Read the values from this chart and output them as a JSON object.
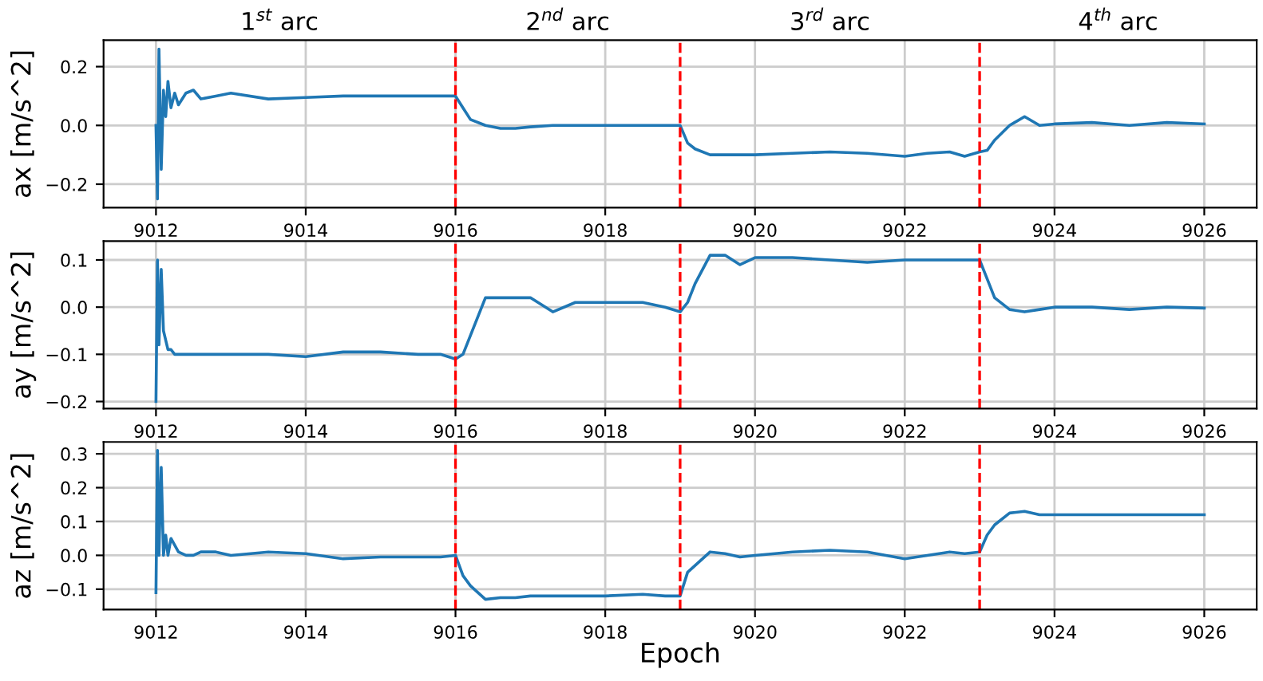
{
  "chart_data": [
    {
      "type": "line",
      "ylabel": "ax [m/s^2]",
      "grid": true,
      "xlim": [
        9011.3,
        9026.7
      ],
      "ylim": [
        -0.28,
        0.29
      ],
      "xticks": [
        9012,
        9014,
        9016,
        9018,
        9020,
        9022,
        9024,
        9026
      ],
      "yticks": [
        {
          "value": -0.2,
          "label": "−0.2"
        },
        {
          "value": 0,
          "label": "0.0"
        },
        {
          "value": 0.2,
          "label": "0.2"
        }
      ],
      "annotations": [
        "1$^{st}$ arc",
        "2$^{nd}$ arc",
        "3$^{rd}$ arc",
        "4$^{th}$ arc"
      ],
      "ref_lines": [
        {
          "axis": "x",
          "value": 9016,
          "color": "#ff0000",
          "line_style": "dashed"
        },
        {
          "axis": "x",
          "value": 9019,
          "color": "#ff0000",
          "line_style": "dashed"
        },
        {
          "axis": "x",
          "value": 9023,
          "color": "#ff0000",
          "line_style": "dashed"
        }
      ],
      "x": [
        9012.0,
        9012.02,
        9012.04,
        9012.07,
        9012.1,
        9012.13,
        9012.16,
        9012.2,
        9012.25,
        9012.3,
        9012.4,
        9012.5,
        9012.6,
        9012.8,
        9013.0,
        9013.5,
        9014.0,
        9014.5,
        9015.0,
        9015.5,
        9015.8,
        9016.0,
        9016.1,
        9016.2,
        9016.4,
        9016.6,
        9016.8,
        9017.0,
        9017.3,
        9017.6,
        9018.0,
        9018.5,
        9018.8,
        9019.0,
        9019.1,
        9019.2,
        9019.4,
        9019.6,
        9019.8,
        9020.0,
        9020.5,
        9021.0,
        9021.5,
        9022.0,
        9022.3,
        9022.6,
        9022.8,
        9023.0,
        9023.1,
        9023.2,
        9023.4,
        9023.6,
        9023.8,
        9024.0,
        9024.5,
        9025.0,
        9025.5,
        9026.0
      ],
      "series": [
        {
          "color": "#1f77b4",
          "values": [
            0.0,
            -0.25,
            0.26,
            -0.15,
            0.12,
            0.03,
            0.15,
            0.06,
            0.11,
            0.07,
            0.11,
            0.12,
            0.09,
            0.1,
            0.11,
            0.09,
            0.095,
            0.1,
            0.1,
            0.1,
            0.1,
            0.1,
            0.06,
            0.02,
            0.0,
            -0.01,
            -0.01,
            -0.005,
            0.0,
            0.0,
            0.0,
            0.0,
            0.0,
            0.0,
            -0.06,
            -0.08,
            -0.1,
            -0.1,
            -0.1,
            -0.1,
            -0.095,
            -0.09,
            -0.095,
            -0.105,
            -0.095,
            -0.09,
            -0.105,
            -0.09,
            -0.085,
            -0.05,
            0.0,
            0.03,
            0.0,
            0.005,
            0.01,
            0.0,
            0.01,
            0.005
          ]
        }
      ]
    },
    {
      "type": "line",
      "ylabel": "ay [m/s^2]",
      "grid": true,
      "xlim": [
        9011.3,
        9026.7
      ],
      "ylim": [
        -0.215,
        0.14
      ],
      "xticks": [
        9012,
        9014,
        9016,
        9018,
        9020,
        9022,
        9024,
        9026
      ],
      "yticks": [
        {
          "value": -0.2,
          "label": "−0.2"
        },
        {
          "value": -0.1,
          "label": "−0.1"
        },
        {
          "value": 0,
          "label": "0.0"
        },
        {
          "value": 0.1,
          "label": "0.1"
        }
      ],
      "ref_lines": [
        {
          "axis": "x",
          "value": 9016,
          "color": "#ff0000",
          "line_style": "dashed"
        },
        {
          "axis": "x",
          "value": 9019,
          "color": "#ff0000",
          "line_style": "dashed"
        },
        {
          "axis": "x",
          "value": 9023,
          "color": "#ff0000",
          "line_style": "dashed"
        }
      ],
      "x": [
        9012.0,
        9012.02,
        9012.04,
        9012.07,
        9012.1,
        9012.13,
        9012.16,
        9012.2,
        9012.25,
        9012.3,
        9012.4,
        9012.5,
        9012.6,
        9012.8,
        9013.0,
        9013.5,
        9014.0,
        9014.5,
        9015.0,
        9015.5,
        9015.8,
        9016.0,
        9016.1,
        9016.2,
        9016.4,
        9016.6,
        9016.8,
        9017.0,
        9017.3,
        9017.6,
        9018.0,
        9018.5,
        9018.8,
        9019.0,
        9019.1,
        9019.2,
        9019.4,
        9019.6,
        9019.8,
        9020.0,
        9020.5,
        9021.0,
        9021.5,
        9022.0,
        9022.3,
        9022.6,
        9022.8,
        9023.0,
        9023.1,
        9023.2,
        9023.4,
        9023.6,
        9023.8,
        9024.0,
        9024.5,
        9025.0,
        9025.5,
        9026.0
      ],
      "series": [
        {
          "color": "#1f77b4",
          "values": [
            -0.2,
            0.1,
            -0.08,
            0.08,
            -0.05,
            -0.07,
            -0.09,
            -0.09,
            -0.1,
            -0.1,
            -0.1,
            -0.1,
            -0.1,
            -0.1,
            -0.1,
            -0.1,
            -0.105,
            -0.095,
            -0.095,
            -0.1,
            -0.1,
            -0.11,
            -0.1,
            -0.06,
            0.02,
            0.02,
            0.02,
            0.02,
            -0.01,
            0.01,
            0.01,
            0.01,
            0.0,
            -0.01,
            0.01,
            0.05,
            0.11,
            0.11,
            0.09,
            0.105,
            0.105,
            0.1,
            0.095,
            0.1,
            0.1,
            0.1,
            0.1,
            0.1,
            0.06,
            0.02,
            -0.005,
            -0.01,
            -0.005,
            0.0,
            0.0,
            -0.005,
            0.0,
            -0.002
          ]
        }
      ]
    },
    {
      "type": "line",
      "xlabel": "Epoch",
      "ylabel": "az [m/s^2]",
      "grid": true,
      "xlim": [
        9011.3,
        9026.7
      ],
      "ylim": [
        -0.16,
        0.335
      ],
      "xticks": [
        9012,
        9014,
        9016,
        9018,
        9020,
        9022,
        9024,
        9026
      ],
      "yticks": [
        {
          "value": -0.1,
          "label": "−0.1"
        },
        {
          "value": 0,
          "label": "0.0"
        },
        {
          "value": 0.1,
          "label": "0.1"
        },
        {
          "value": 0.2,
          "label": "0.2"
        },
        {
          "value": 0.3,
          "label": "0.3"
        }
      ],
      "ref_lines": [
        {
          "axis": "x",
          "value": 9016,
          "color": "#ff0000",
          "line_style": "dashed"
        },
        {
          "axis": "x",
          "value": 9019,
          "color": "#ff0000",
          "line_style": "dashed"
        },
        {
          "axis": "x",
          "value": 9023,
          "color": "#ff0000",
          "line_style": "dashed"
        }
      ],
      "x": [
        9012.0,
        9012.02,
        9012.04,
        9012.07,
        9012.1,
        9012.13,
        9012.16,
        9012.2,
        9012.25,
        9012.3,
        9012.4,
        9012.5,
        9012.6,
        9012.8,
        9013.0,
        9013.5,
        9014.0,
        9014.5,
        9015.0,
        9015.5,
        9015.8,
        9016.0,
        9016.1,
        9016.2,
        9016.4,
        9016.6,
        9016.8,
        9017.0,
        9017.3,
        9017.6,
        9018.0,
        9018.5,
        9018.8,
        9019.0,
        9019.1,
        9019.2,
        9019.4,
        9019.6,
        9019.8,
        9020.0,
        9020.5,
        9021.0,
        9021.5,
        9022.0,
        9022.3,
        9022.6,
        9022.8,
        9023.0,
        9023.1,
        9023.2,
        9023.4,
        9023.6,
        9023.8,
        9024.0,
        9024.5,
        9025.0,
        9025.5,
        9026.0
      ],
      "series": [
        {
          "color": "#1f77b4",
          "values": [
            -0.11,
            0.31,
            0.0,
            0.26,
            0.0,
            0.06,
            0.0,
            0.05,
            0.03,
            0.01,
            0.0,
            0.0,
            0.01,
            0.01,
            0.0,
            0.01,
            0.005,
            -0.01,
            -0.005,
            -0.005,
            -0.005,
            0.0,
            -0.06,
            -0.09,
            -0.13,
            -0.125,
            -0.125,
            -0.12,
            -0.12,
            -0.12,
            -0.12,
            -0.115,
            -0.12,
            -0.12,
            -0.05,
            -0.03,
            0.01,
            0.005,
            -0.005,
            0.0,
            0.01,
            0.015,
            0.01,
            -0.01,
            0.0,
            0.01,
            0.005,
            0.01,
            0.06,
            0.09,
            0.125,
            0.13,
            0.12,
            0.12,
            0.12,
            0.12,
            0.12,
            0.12
          ]
        }
      ]
    }
  ]
}
